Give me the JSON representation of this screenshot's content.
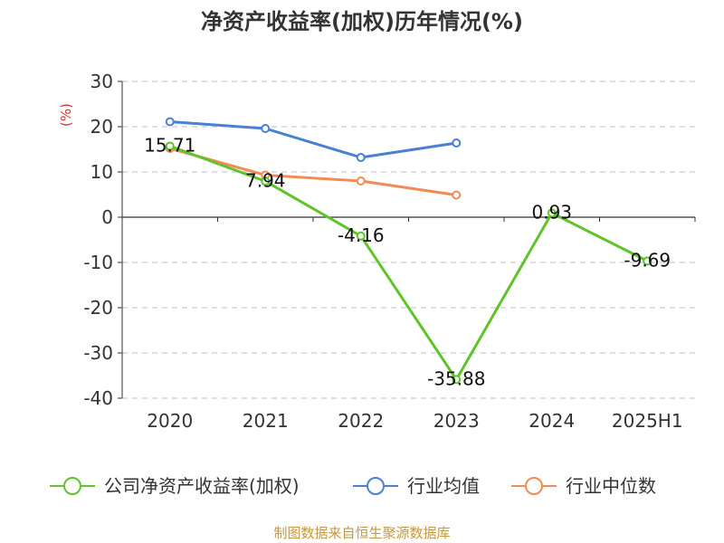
{
  "chart_data": {
    "type": "line",
    "title": "净资产收益率(加权)历年情况(%)",
    "unit_label": "(%)",
    "categories": [
      "2020",
      "2021",
      "2022",
      "2023",
      "2024",
      "2025H1"
    ],
    "ylim": [
      -40,
      30
    ],
    "y_ticks": [
      30,
      20,
      10,
      0,
      -10,
      -20,
      -30,
      -40
    ],
    "grid": true,
    "legend_position": "bottom",
    "series": [
      {
        "name": "公司净资产收益率(加权)",
        "color": "#5ec42a",
        "values": [
          15.71,
          7.94,
          -4.16,
          -35.88,
          0.93,
          -9.69
        ],
        "labels": [
          "15.71",
          "7.94",
          "-4.16",
          "-35.88",
          "0.93",
          "-9.69"
        ]
      },
      {
        "name": "行业均值",
        "color": "#4a7fd6",
        "values": [
          21.1,
          19.6,
          13.2,
          16.4,
          null,
          null
        ]
      },
      {
        "name": "行业中位数",
        "color": "#f28b54",
        "values": [
          15.2,
          9.3,
          8.0,
          4.9,
          null,
          null
        ]
      }
    ]
  },
  "footer": {
    "source": "制图数据来自恒生聚源数据库"
  }
}
